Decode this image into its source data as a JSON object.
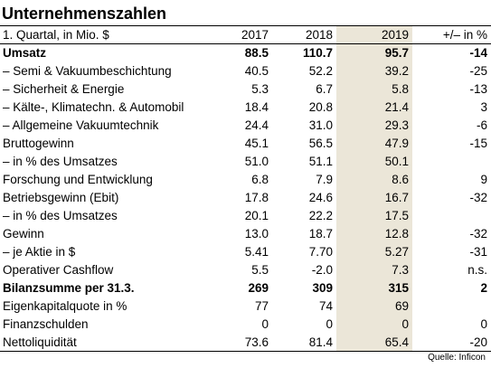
{
  "title": "Unternehmenszahlen",
  "header": {
    "label": "1. Quartal, in Mio. $",
    "y1": "2017",
    "y2": "2018",
    "y3": "2019",
    "change": "+/– in %"
  },
  "highlight_color": "#ebe6d8",
  "rows": [
    {
      "label": "Umsatz",
      "y1": "88.5",
      "y2": "110.7",
      "y3": "95.7",
      "change": "-14",
      "bold": true
    },
    {
      "label": "– Semi & Vakuumbeschichtung",
      "y1": "40.5",
      "y2": "52.2",
      "y3": "39.2",
      "change": "-25"
    },
    {
      "label": "– Sicherheit & Energie",
      "y1": "5.3",
      "y2": "6.7",
      "y3": "5.8",
      "change": "-13"
    },
    {
      "label": "– Kälte-, Klimatechn. & Automobil",
      "y1": "18.4",
      "y2": "20.8",
      "y3": "21.4",
      "change": "3"
    },
    {
      "label": "– Allgemeine Vakuumtechnik",
      "y1": "24.4",
      "y2": "31.0",
      "y3": "29.3",
      "change": "-6"
    },
    {
      "label": "Bruttogewinn",
      "y1": "45.1",
      "y2": "56.5",
      "y3": "47.9",
      "change": "-15"
    },
    {
      "label": "– in % des Umsatzes",
      "y1": "51.0",
      "y2": "51.1",
      "y3": "50.1",
      "change": ""
    },
    {
      "label": "Forschung und Entwicklung",
      "y1": "6.8",
      "y2": "7.9",
      "y3": "8.6",
      "change": "9"
    },
    {
      "label": "Betriebsgewinn (Ebit)",
      "y1": "17.8",
      "y2": "24.6",
      "y3": "16.7",
      "change": "-32"
    },
    {
      "label": "– in % des Umsatzes",
      "y1": "20.1",
      "y2": "22.2",
      "y3": "17.5",
      "change": ""
    },
    {
      "label": "Gewinn",
      "y1": "13.0",
      "y2": "18.7",
      "y3": "12.8",
      "change": "-32"
    },
    {
      "label": "– je Aktie in $",
      "y1": "5.41",
      "y2": "7.70",
      "y3": "5.27",
      "change": "-31"
    },
    {
      "label": "Operativer Cashflow",
      "y1": "5.5",
      "y2": "-2.0",
      "y3": "7.3",
      "change": "n.s."
    },
    {
      "label": "Bilanzsumme per 31.3.",
      "y1": "269",
      "y2": "309",
      "y3": "315",
      "change": "2",
      "bold": true
    },
    {
      "label": "Eigenkapitalquote in %",
      "y1": "77",
      "y2": "74",
      "y3": "69",
      "change": ""
    },
    {
      "label": "Finanzschulden",
      "y1": "0",
      "y2": "0",
      "y3": "0",
      "change": "0"
    },
    {
      "label": "Nettoliquidität",
      "y1": "73.6",
      "y2": "81.4",
      "y3": "65.4",
      "change": "-20"
    }
  ],
  "source": "Quelle: Inficon"
}
